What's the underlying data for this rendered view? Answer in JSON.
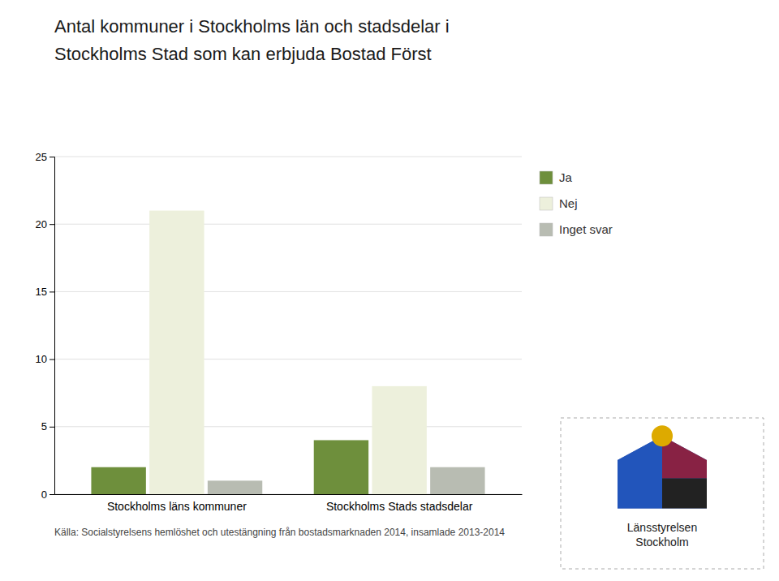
{
  "chart_data": {
    "type": "bar",
    "title": [
      "Antal kommuner i Stockholms län och stadsdelar i",
      "Stockholms Stad som kan erbjuda Bostad Först"
    ],
    "categories": [
      "Stockholms läns kommuner",
      "Stockholms Stads stadsdelar"
    ],
    "series": [
      {
        "name": "Ja",
        "color": "#6e8f3c",
        "values": [
          2,
          4
        ]
      },
      {
        "name": "Nej",
        "color": "#edf0dc",
        "values": [
          21,
          8
        ]
      },
      {
        "name": "Inget svar",
        "color": "#b8bcb2",
        "values": [
          1,
          2
        ]
      }
    ],
    "ylim": [
      0,
      25
    ],
    "yticks": [
      0,
      5,
      10,
      15,
      20,
      25
    ],
    "grid": true,
    "legend": "right",
    "caption": "Källa: Socialstyrelsens hemlöshet och utestängning från bostadsmarknaden 2014, insamlade 2013-2014",
    "annotations": [
      "Länsstyrelsen",
      "Stockholm"
    ]
  }
}
